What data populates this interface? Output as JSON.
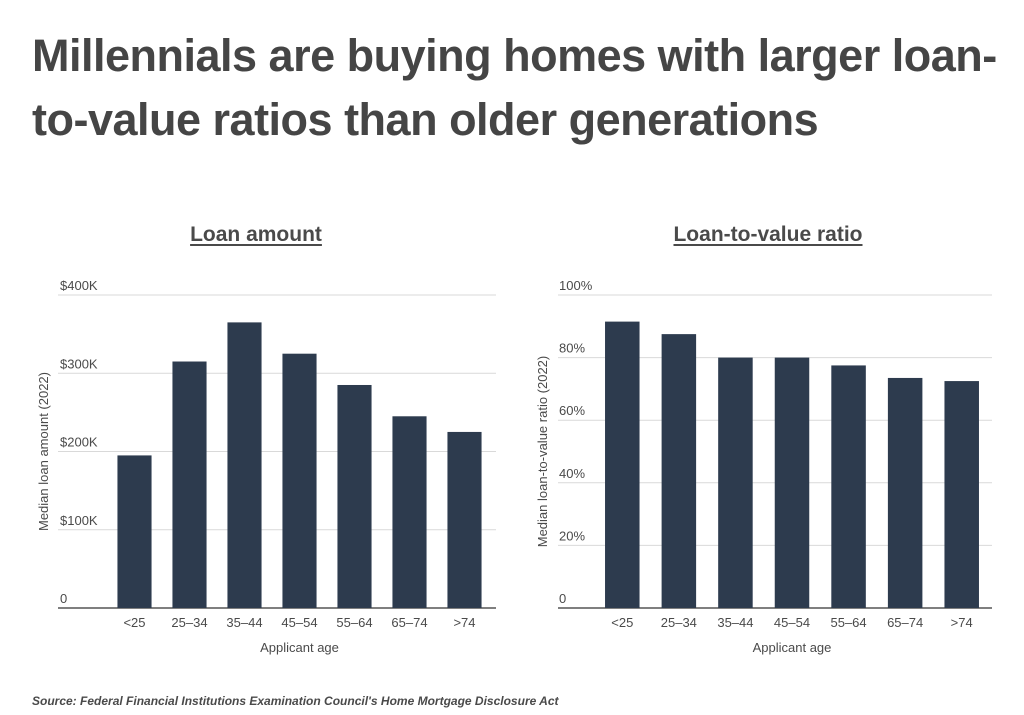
{
  "title": "Millennials are buying homes with larger loan-to-value ratios than older generations",
  "source": "Source: Federal Financial Institutions Examination Council's Home Mortgage Disclosure Act",
  "colors": {
    "bar": "#2d3b4e",
    "grid": "#d9d9d9",
    "axis": "#333333"
  },
  "chart_data": [
    {
      "type": "bar",
      "title": "Loan amount",
      "xlabel": "Applicant age",
      "ylabel": "Median loan amount (2022)",
      "categories": [
        "<25",
        "25–34",
        "35–44",
        "45–54",
        "55–64",
        "65–74",
        ">74"
      ],
      "values": [
        195000,
        315000,
        365000,
        325000,
        285000,
        245000,
        225000
      ],
      "ylim": [
        0,
        400000
      ],
      "yticks": [
        0,
        100000,
        200000,
        300000,
        400000
      ],
      "ytick_labels": [
        "0",
        "$100K",
        "$200K",
        "$300K",
        "$400K"
      ],
      "grid": true
    },
    {
      "type": "bar",
      "title": "Loan-to-value ratio",
      "xlabel": "Applicant age",
      "ylabel": "Median loan-to-value ratio (2022)",
      "categories": [
        "<25",
        "25–34",
        "35–44",
        "45–54",
        "55–64",
        "65–74",
        ">74"
      ],
      "values": [
        91.5,
        87.5,
        80,
        80,
        77.5,
        73.5,
        72.5
      ],
      "ylim": [
        0,
        100
      ],
      "yticks": [
        0,
        20,
        40,
        60,
        80,
        100
      ],
      "ytick_labels": [
        "0",
        "20%",
        "40%",
        "60%",
        "80%",
        "100%"
      ],
      "grid": true
    }
  ]
}
